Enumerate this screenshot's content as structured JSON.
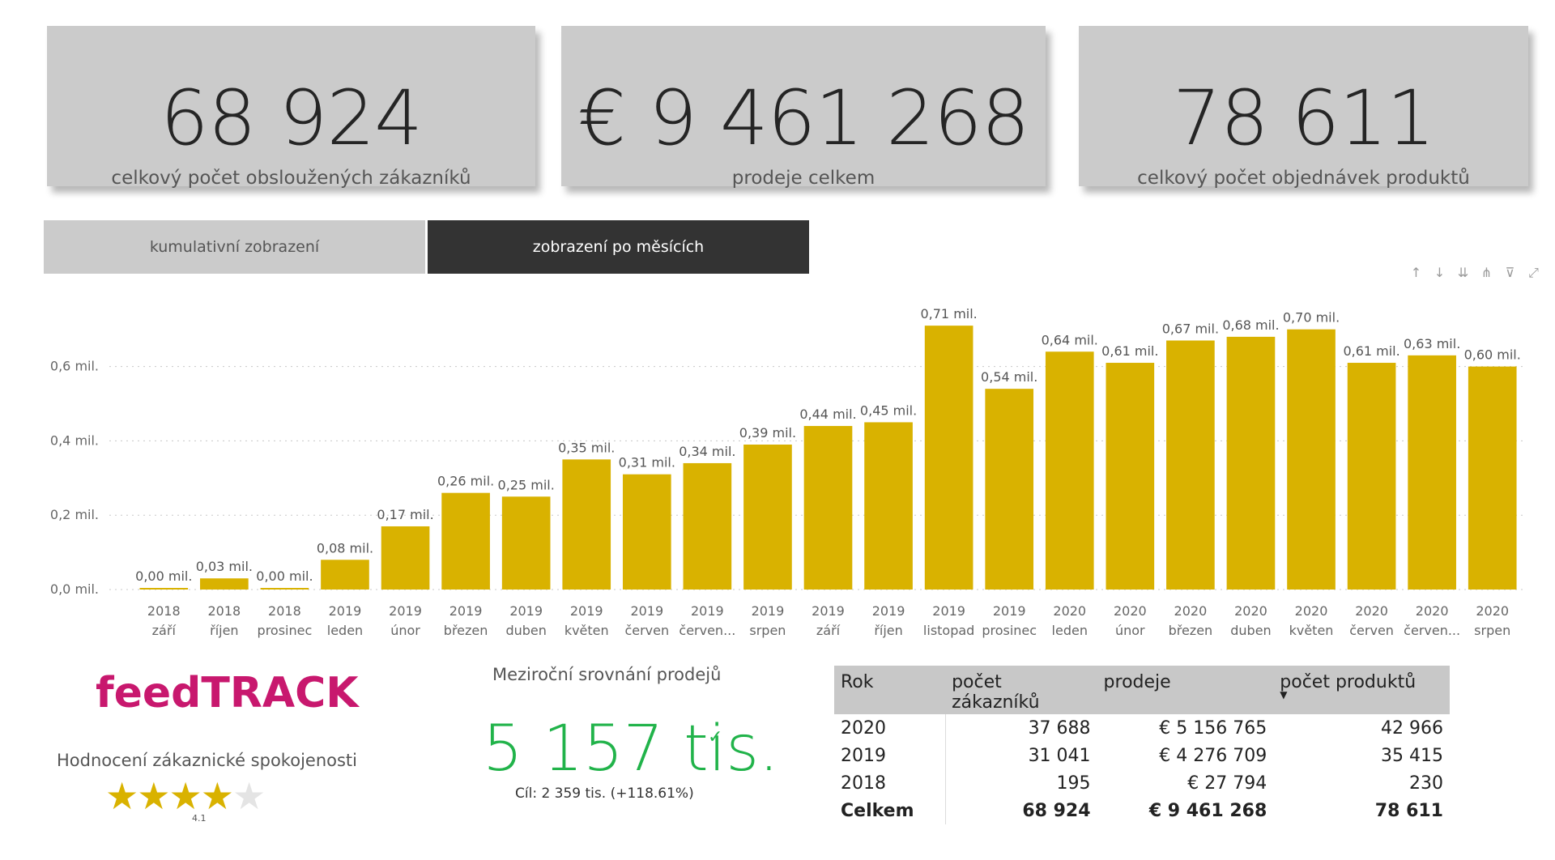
{
  "kpis": [
    {
      "value": "68 924",
      "label": "celkový počet obsloužených zákazníků"
    },
    {
      "value": "€ 9 461 268",
      "label": "prodeje celkem"
    },
    {
      "value": "78 611",
      "label": "celkový počet objednávek produktů"
    }
  ],
  "tabs": {
    "cumulative": "kumulativní zobrazení",
    "monthly": "zobrazení po měsících"
  },
  "toolbar_icons": [
    "arrow-up-icon",
    "arrow-down-icon",
    "double-arrow-down-icon",
    "hierarchy-icon",
    "filter-icon",
    "focus-mode-icon"
  ],
  "chart_data": {
    "type": "bar",
    "categories": [
      [
        "2018",
        "září"
      ],
      [
        "2018",
        "říjen"
      ],
      [
        "2018",
        "prosinec"
      ],
      [
        "2019",
        "leden"
      ],
      [
        "2019",
        "únor"
      ],
      [
        "2019",
        "březen"
      ],
      [
        "2019",
        "duben"
      ],
      [
        "2019",
        "květen"
      ],
      [
        "2019",
        "červen"
      ],
      [
        "2019",
        "červen..."
      ],
      [
        "2019",
        "srpen"
      ],
      [
        "2019",
        "září"
      ],
      [
        "2019",
        "říjen"
      ],
      [
        "2019",
        "listopad"
      ],
      [
        "2019",
        "prosinec"
      ],
      [
        "2020",
        "leden"
      ],
      [
        "2020",
        "únor"
      ],
      [
        "2020",
        "březen"
      ],
      [
        "2020",
        "duben"
      ],
      [
        "2020",
        "květen"
      ],
      [
        "2020",
        "červen"
      ],
      [
        "2020",
        "červen..."
      ],
      [
        "2020",
        "srpen"
      ]
    ],
    "values": [
      0.0,
      0.03,
      0.0,
      0.08,
      0.17,
      0.26,
      0.25,
      0.35,
      0.31,
      0.34,
      0.39,
      0.44,
      0.45,
      0.71,
      0.54,
      0.64,
      0.61,
      0.67,
      0.68,
      0.7,
      0.61,
      0.63,
      0.6
    ],
    "data_labels": [
      "0,00 mil.",
      "0,03 mil.",
      "0,00 mil.",
      "0,08 mil.",
      "0,17 mil.",
      "0,26 mil.",
      "0,25 mil.",
      "0,35 mil.",
      "0,31 mil.",
      "0,34 mil.",
      "0,39 mil.",
      "0,44 mil.",
      "0,45 mil.",
      "0,71 mil.",
      "0,54 mil.",
      "0,64 mil.",
      "0,61 mil.",
      "0,67 mil.",
      "0,68 mil.",
      "0,70 mil.",
      "0,61 mil.",
      "0,63 mil.",
      "0,60 mil."
    ],
    "yticks": [
      0.0,
      0.2,
      0.4,
      0.6
    ],
    "ytick_labels": [
      "0,0 mil.",
      "0,2 mil.",
      "0,4 mil.",
      "0,6 mil."
    ],
    "ylim": [
      0,
      0.78
    ],
    "grid": true,
    "bar_color": "#d9b200"
  },
  "logo": "feedTRACK",
  "rating": {
    "label": "Hodnocení zákaznické spokojenosti",
    "value": 4.1,
    "value_text": "4.1",
    "max": 5
  },
  "yoy": {
    "title": "Meziroční srovnání prodejů",
    "value": "5 157 tis.",
    "goal": "Cíl: 2 359 tis. (+118.61%)"
  },
  "table": {
    "headers": [
      "Rok",
      "počet zákazníků",
      "prodeje",
      "počet produktů"
    ],
    "rows": [
      [
        "2020",
        "37 688",
        "€ 5 156 765",
        "42 966"
      ],
      [
        "2019",
        "31 041",
        "€ 4 276 709",
        "35 415"
      ],
      [
        "2018",
        "195",
        "€ 27 794",
        "230"
      ]
    ],
    "total": [
      "Celkem",
      "68 924",
      "€ 9 461 268",
      "78 611"
    ]
  }
}
